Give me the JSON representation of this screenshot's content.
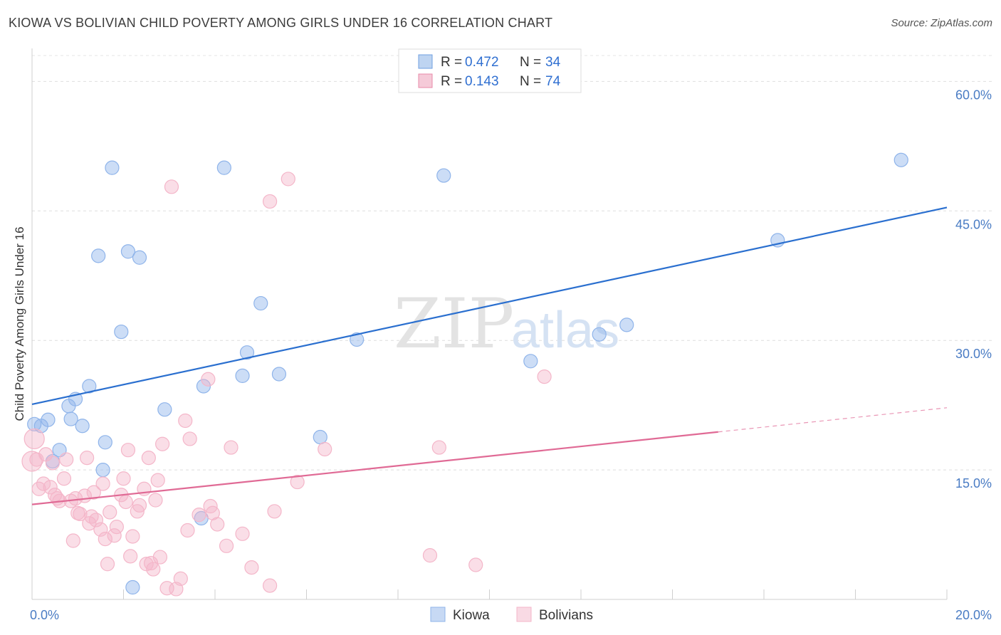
{
  "title": "KIOWA VS BOLIVIAN CHILD POVERTY AMONG GIRLS UNDER 16 CORRELATION CHART",
  "source": "Source: ZipAtlas.com",
  "watermark": {
    "zip": "ZIP",
    "atlas": "atlas"
  },
  "chart_data": {
    "type": "scatter",
    "xlabel": "",
    "ylabel": "Child Poverty Among Girls Under 16",
    "xlim": [
      0,
      20
    ],
    "ylim": [
      0,
      63
    ],
    "x_tick_labels": [
      {
        "value": 0,
        "label": "0.0%"
      },
      {
        "value": 20,
        "label": "20.0%"
      }
    ],
    "y_tick_labels": [
      {
        "value": 15,
        "label": "15.0%"
      },
      {
        "value": 30,
        "label": "30.0%"
      },
      {
        "value": 45,
        "label": "45.0%"
      },
      {
        "value": 60,
        "label": "60.0%"
      }
    ],
    "grid": true,
    "legend_placement": "top-center",
    "legend": [
      {
        "r_label": "R =",
        "r": "0.472",
        "n_label": "N =",
        "n": "34",
        "color": "#6f9fe0"
      },
      {
        "r_label": "R =",
        "r": "0.143",
        "n_label": "N =",
        "n": "74",
        "color": "#e88aa8"
      }
    ],
    "series": [
      {
        "name": "Kiowa",
        "color": "#8fb4ea",
        "line_color": "#2a6fcf",
        "trend": {
          "x0": 0,
          "y0": 22.6,
          "x1": 20,
          "y1": 45.4,
          "solid_until": 20
        },
        "points": [
          [
            0.05,
            20.3
          ],
          [
            0.2,
            20.1
          ],
          [
            0.35,
            20.8
          ],
          [
            0.45,
            16.0
          ],
          [
            0.6,
            17.3
          ],
          [
            0.8,
            22.4
          ],
          [
            0.85,
            20.9
          ],
          [
            0.95,
            23.2
          ],
          [
            1.1,
            20.1
          ],
          [
            1.25,
            24.7
          ],
          [
            1.45,
            39.8
          ],
          [
            1.55,
            15.0
          ],
          [
            1.6,
            18.2
          ],
          [
            1.75,
            50.0
          ],
          [
            1.95,
            31.0
          ],
          [
            2.1,
            40.3
          ],
          [
            2.2,
            1.4
          ],
          [
            2.35,
            39.6
          ],
          [
            2.9,
            22.0
          ],
          [
            3.7,
            9.4
          ],
          [
            3.75,
            24.7
          ],
          [
            4.2,
            50.0
          ],
          [
            4.6,
            25.9
          ],
          [
            4.7,
            28.6
          ],
          [
            5.0,
            34.3
          ],
          [
            5.4,
            26.1
          ],
          [
            6.3,
            18.8
          ],
          [
            7.1,
            30.1
          ],
          [
            9.0,
            49.1
          ],
          [
            10.9,
            27.6
          ],
          [
            12.4,
            30.7
          ],
          [
            13.0,
            31.8
          ],
          [
            16.3,
            41.6
          ],
          [
            19.0,
            50.9
          ]
        ]
      },
      {
        "name": "Bolivians",
        "color": "#f4b6c9",
        "line_color": "#e06a95",
        "trend": {
          "x0": 0,
          "y0": 11.0,
          "x1": 20,
          "y1": 22.2,
          "solid_until": 15.0
        },
        "points": [
          [
            0.05,
            18.6
          ],
          [
            0.1,
            16.2
          ],
          [
            0.15,
            12.8
          ],
          [
            0.25,
            13.4
          ],
          [
            0.3,
            16.8
          ],
          [
            0.4,
            13.0
          ],
          [
            0.45,
            15.8
          ],
          [
            0.5,
            12.1
          ],
          [
            0.55,
            11.7
          ],
          [
            0.6,
            11.4
          ],
          [
            0.7,
            14.0
          ],
          [
            0.75,
            16.2
          ],
          [
            0.85,
            11.4
          ],
          [
            0.9,
            6.8
          ],
          [
            0.95,
            11.7
          ],
          [
            1.0,
            10.0
          ],
          [
            1.05,
            9.9
          ],
          [
            1.15,
            12.0
          ],
          [
            1.2,
            16.4
          ],
          [
            1.25,
            8.8
          ],
          [
            1.3,
            9.6
          ],
          [
            1.35,
            12.4
          ],
          [
            1.4,
            9.2
          ],
          [
            1.5,
            8.1
          ],
          [
            1.55,
            13.4
          ],
          [
            1.6,
            7.0
          ],
          [
            1.65,
            4.1
          ],
          [
            1.7,
            10.1
          ],
          [
            1.8,
            7.4
          ],
          [
            1.85,
            8.4
          ],
          [
            1.95,
            12.1
          ],
          [
            2.0,
            14.0
          ],
          [
            2.05,
            11.3
          ],
          [
            2.1,
            17.3
          ],
          [
            2.15,
            5.0
          ],
          [
            2.2,
            7.3
          ],
          [
            2.3,
            10.2
          ],
          [
            2.35,
            10.9
          ],
          [
            2.45,
            12.8
          ],
          [
            2.5,
            4.1
          ],
          [
            2.55,
            16.4
          ],
          [
            2.6,
            4.2
          ],
          [
            2.65,
            3.5
          ],
          [
            2.7,
            11.5
          ],
          [
            2.75,
            13.8
          ],
          [
            2.8,
            4.9
          ],
          [
            2.85,
            18.0
          ],
          [
            2.95,
            1.3
          ],
          [
            3.05,
            47.8
          ],
          [
            3.15,
            1.2
          ],
          [
            3.25,
            2.4
          ],
          [
            3.35,
            20.7
          ],
          [
            3.4,
            8.0
          ],
          [
            3.45,
            18.6
          ],
          [
            3.65,
            9.8
          ],
          [
            3.85,
            25.5
          ],
          [
            3.9,
            10.8
          ],
          [
            3.95,
            10.0
          ],
          [
            4.05,
            8.7
          ],
          [
            4.25,
            6.2
          ],
          [
            4.35,
            17.6
          ],
          [
            4.6,
            7.6
          ],
          [
            4.8,
            3.7
          ],
          [
            5.2,
            46.1
          ],
          [
            5.2,
            1.6
          ],
          [
            5.3,
            10.2
          ],
          [
            5.6,
            48.7
          ],
          [
            5.8,
            13.6
          ],
          [
            6.4,
            17.4
          ],
          [
            8.7,
            5.1
          ],
          [
            8.9,
            17.6
          ],
          [
            9.7,
            4.0
          ],
          [
            11.2,
            25.8
          ],
          [
            0.0,
            16.0
          ]
        ]
      }
    ]
  }
}
